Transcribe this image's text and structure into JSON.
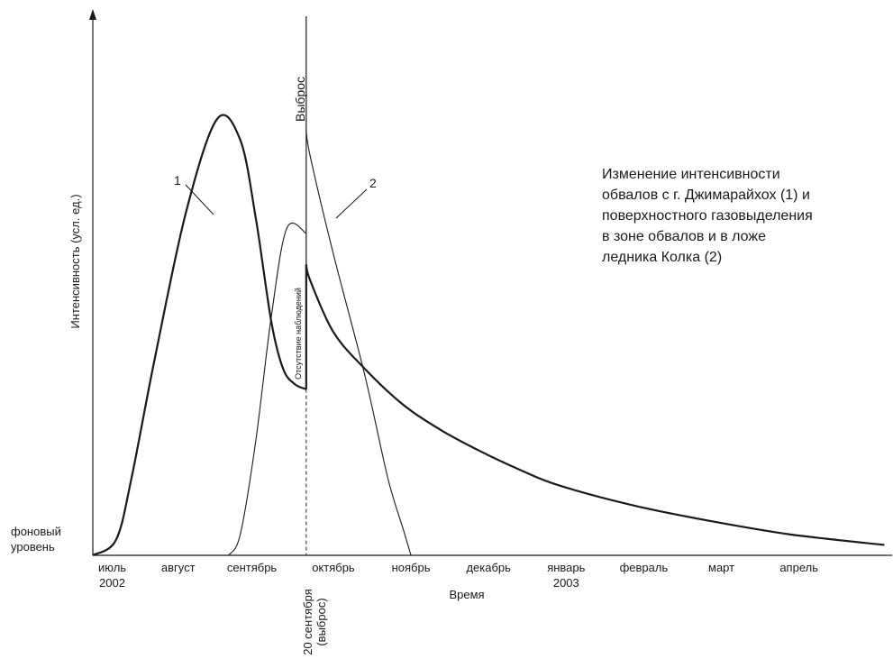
{
  "chart_data": {
    "type": "line",
    "title_lines": [
      "Изменение интенсивности",
      "обвалов с г. Джимарайхох (1) и",
      "поверхностного газовыделения",
      "в зоне обвалов и в ложе",
      "ледника Колка (2)"
    ],
    "ylabel": "Интенсивность (усл. ед.)",
    "xlabel": "Время",
    "baseline_label_lines": [
      "фоновый",
      "уровень"
    ],
    "x_ticks": [
      {
        "label": "июль",
        "sub": "2002",
        "t": 0.25
      },
      {
        "label": "август",
        "t": 1.1
      },
      {
        "label": "сентябрь",
        "t": 2.05
      },
      {
        "label": "октябрь",
        "t": 3.1
      },
      {
        "label": "ноябрь",
        "t": 4.1
      },
      {
        "label": "декабрь",
        "t": 5.1
      },
      {
        "label": "январь",
        "sub": "2003",
        "t": 6.1
      },
      {
        "label": "февраль",
        "t": 7.1
      },
      {
        "label": "март",
        "t": 8.1
      },
      {
        "label": "апрель",
        "t": 9.1
      }
    ],
    "xlim": [
      0,
      10.3
    ],
    "ylim": [
      0,
      100
    ],
    "event": {
      "t": 2.75,
      "label": "Выброс",
      "date_lines": [
        "20 сентября",
        "(выброс)"
      ],
      "between_label": "Отсутствие наблюдений"
    },
    "series": [
      {
        "name": "1",
        "stroke": "thick",
        "x": [
          0.0,
          0.3,
          0.5,
          0.8,
          1.2,
          1.6,
          1.9,
          2.1,
          2.3,
          2.45,
          2.6,
          2.75
        ],
        "y": [
          0,
          3,
          15,
          38,
          66,
          84,
          80,
          65,
          45,
          36,
          33,
          32
        ]
      },
      {
        "name": "1",
        "stroke": "thick",
        "x": [
          2.75,
          2.8,
          3.1,
          3.5,
          4.0,
          4.5,
          5.0,
          5.5,
          6.0,
          7.0,
          8.0,
          9.0,
          10.2
        ],
        "y": [
          56,
          53,
          43,
          36,
          29,
          24,
          20,
          16.5,
          13.5,
          9.5,
          6.5,
          4,
          2
        ]
      },
      {
        "name": "2",
        "stroke": "thin",
        "x": [
          1.75,
          1.9,
          2.1,
          2.3,
          2.5,
          2.75
        ],
        "y": [
          0,
          4,
          22,
          46,
          63,
          62
        ]
      },
      {
        "name": "2",
        "stroke": "thin",
        "x": [
          2.75,
          2.8,
          3.1,
          3.5,
          3.8,
          4.0,
          4.1
        ],
        "y": [
          82,
          77,
          58,
          35,
          15,
          5,
          0
        ]
      }
    ],
    "grid": false
  }
}
